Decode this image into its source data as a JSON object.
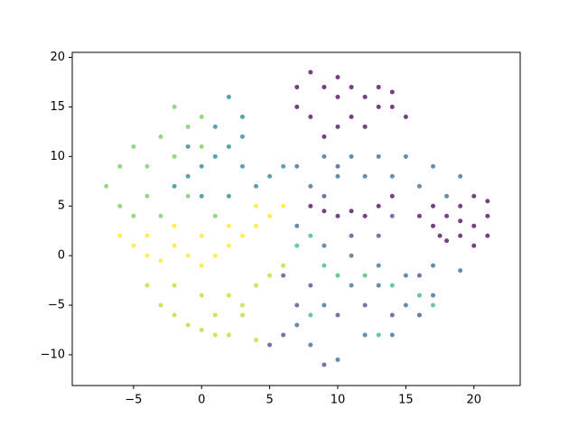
{
  "chart_data": {
    "type": "scatter",
    "xlim": [
      -9.5,
      23.4
    ],
    "ylim": [
      -13.1,
      20.5
    ],
    "xticks": [
      {
        "value": -5,
        "label": "−5"
      },
      0,
      5,
      10,
      15,
      20
    ],
    "yticks": [
      {
        "value": -10,
        "label": "−10"
      },
      {
        "value": -5,
        "label": "−5"
      },
      0,
      5,
      10,
      15,
      20
    ],
    "series": [
      {
        "color": "#440154",
        "x": [
          7,
          8,
          9,
          10,
          11,
          12,
          13,
          14,
          15,
          8,
          9,
          10,
          11,
          12,
          7,
          10,
          13,
          14,
          17,
          18,
          19,
          20,
          21,
          21,
          20,
          19,
          18,
          17,
          16,
          19,
          20,
          17.5,
          21,
          8,
          9,
          10,
          11,
          12,
          13,
          14
        ],
        "y": [
          17,
          18.5,
          17,
          16,
          17,
          16,
          17,
          15,
          14,
          14,
          12,
          13,
          14,
          13,
          15,
          18,
          15,
          16.5,
          5,
          4,
          5,
          6,
          4,
          2,
          1,
          2,
          1.5,
          3,
          4,
          3.5,
          3,
          2,
          5.5,
          5,
          4.5,
          4,
          4.5,
          4,
          5,
          6
        ]
      },
      {
        "color": "#31688e",
        "x": [
          7,
          9,
          11,
          13,
          15,
          17,
          19,
          18,
          16,
          14,
          12,
          10,
          8,
          7,
          9,
          11,
          13,
          15,
          17,
          19,
          17,
          15,
          13,
          11,
          9,
          7,
          8,
          10,
          12,
          14
        ],
        "y": [
          9,
          10,
          10,
          10,
          10,
          9,
          8,
          6,
          7,
          8,
          8,
          8,
          7,
          3,
          1,
          0,
          -1,
          -2,
          -1,
          -1.5,
          -4,
          -5,
          -3,
          -3,
          -5,
          -7,
          -9,
          -10.5,
          -8,
          -8
        ]
      },
      {
        "color": "#3e4989",
        "x": [
          6,
          7,
          8,
          6,
          10,
          12,
          14,
          16,
          11,
          13,
          9,
          10,
          14,
          16,
          5,
          9
        ],
        "y": [
          -8,
          -5,
          -3,
          -2,
          -6,
          -5,
          -6,
          -6,
          2,
          2,
          6,
          9,
          4,
          -2,
          -9,
          -11
        ]
      },
      {
        "color": "#26828e",
        "x": [
          2,
          3,
          3,
          2,
          1,
          0,
          -1,
          -2,
          0,
          2,
          4,
          5,
          6,
          3,
          -1,
          1
        ],
        "y": [
          16,
          14,
          12,
          11,
          10,
          9,
          8,
          7,
          6,
          6,
          7,
          8,
          9,
          9,
          11,
          13
        ]
      },
      {
        "color": "#35b779",
        "x": [
          7,
          8,
          9,
          10,
          12,
          14,
          8,
          13,
          16,
          17
        ],
        "y": [
          1,
          2,
          -1,
          -2,
          -2,
          -3,
          -6,
          -8,
          -4,
          -5
        ]
      },
      {
        "color": "#6ece58",
        "x": [
          -2,
          0,
          -1,
          -3,
          -5,
          -6,
          -7,
          -6,
          -4,
          -2,
          -4,
          -1,
          1,
          -3,
          -5,
          0
        ],
        "y": [
          15,
          14,
          13,
          12,
          11,
          9,
          7,
          5,
          6,
          10,
          9,
          6,
          4,
          4,
          4,
          11
        ]
      },
      {
        "color": "#fde725",
        "x": [
          -6,
          -5,
          -4,
          -3,
          -2,
          -1,
          0,
          1,
          2,
          3,
          4,
          5,
          6,
          2,
          0,
          -2,
          4,
          -4
        ],
        "y": [
          2,
          1,
          0,
          -0.5,
          1,
          0,
          -1,
          0,
          1,
          2,
          3,
          4,
          5,
          3,
          2,
          3,
          5,
          2
        ]
      },
      {
        "color": "#b5de2b",
        "x": [
          -4,
          -3,
          -2,
          -1,
          0,
          1,
          2,
          4,
          3,
          2,
          4,
          5,
          6,
          0,
          -2,
          1,
          3
        ],
        "y": [
          -3,
          -5,
          -6,
          -7,
          -7.5,
          -8,
          -8,
          -8.5,
          -6,
          -4,
          -3,
          -2,
          -1,
          -4,
          -3,
          -6,
          -5
        ]
      }
    ]
  }
}
